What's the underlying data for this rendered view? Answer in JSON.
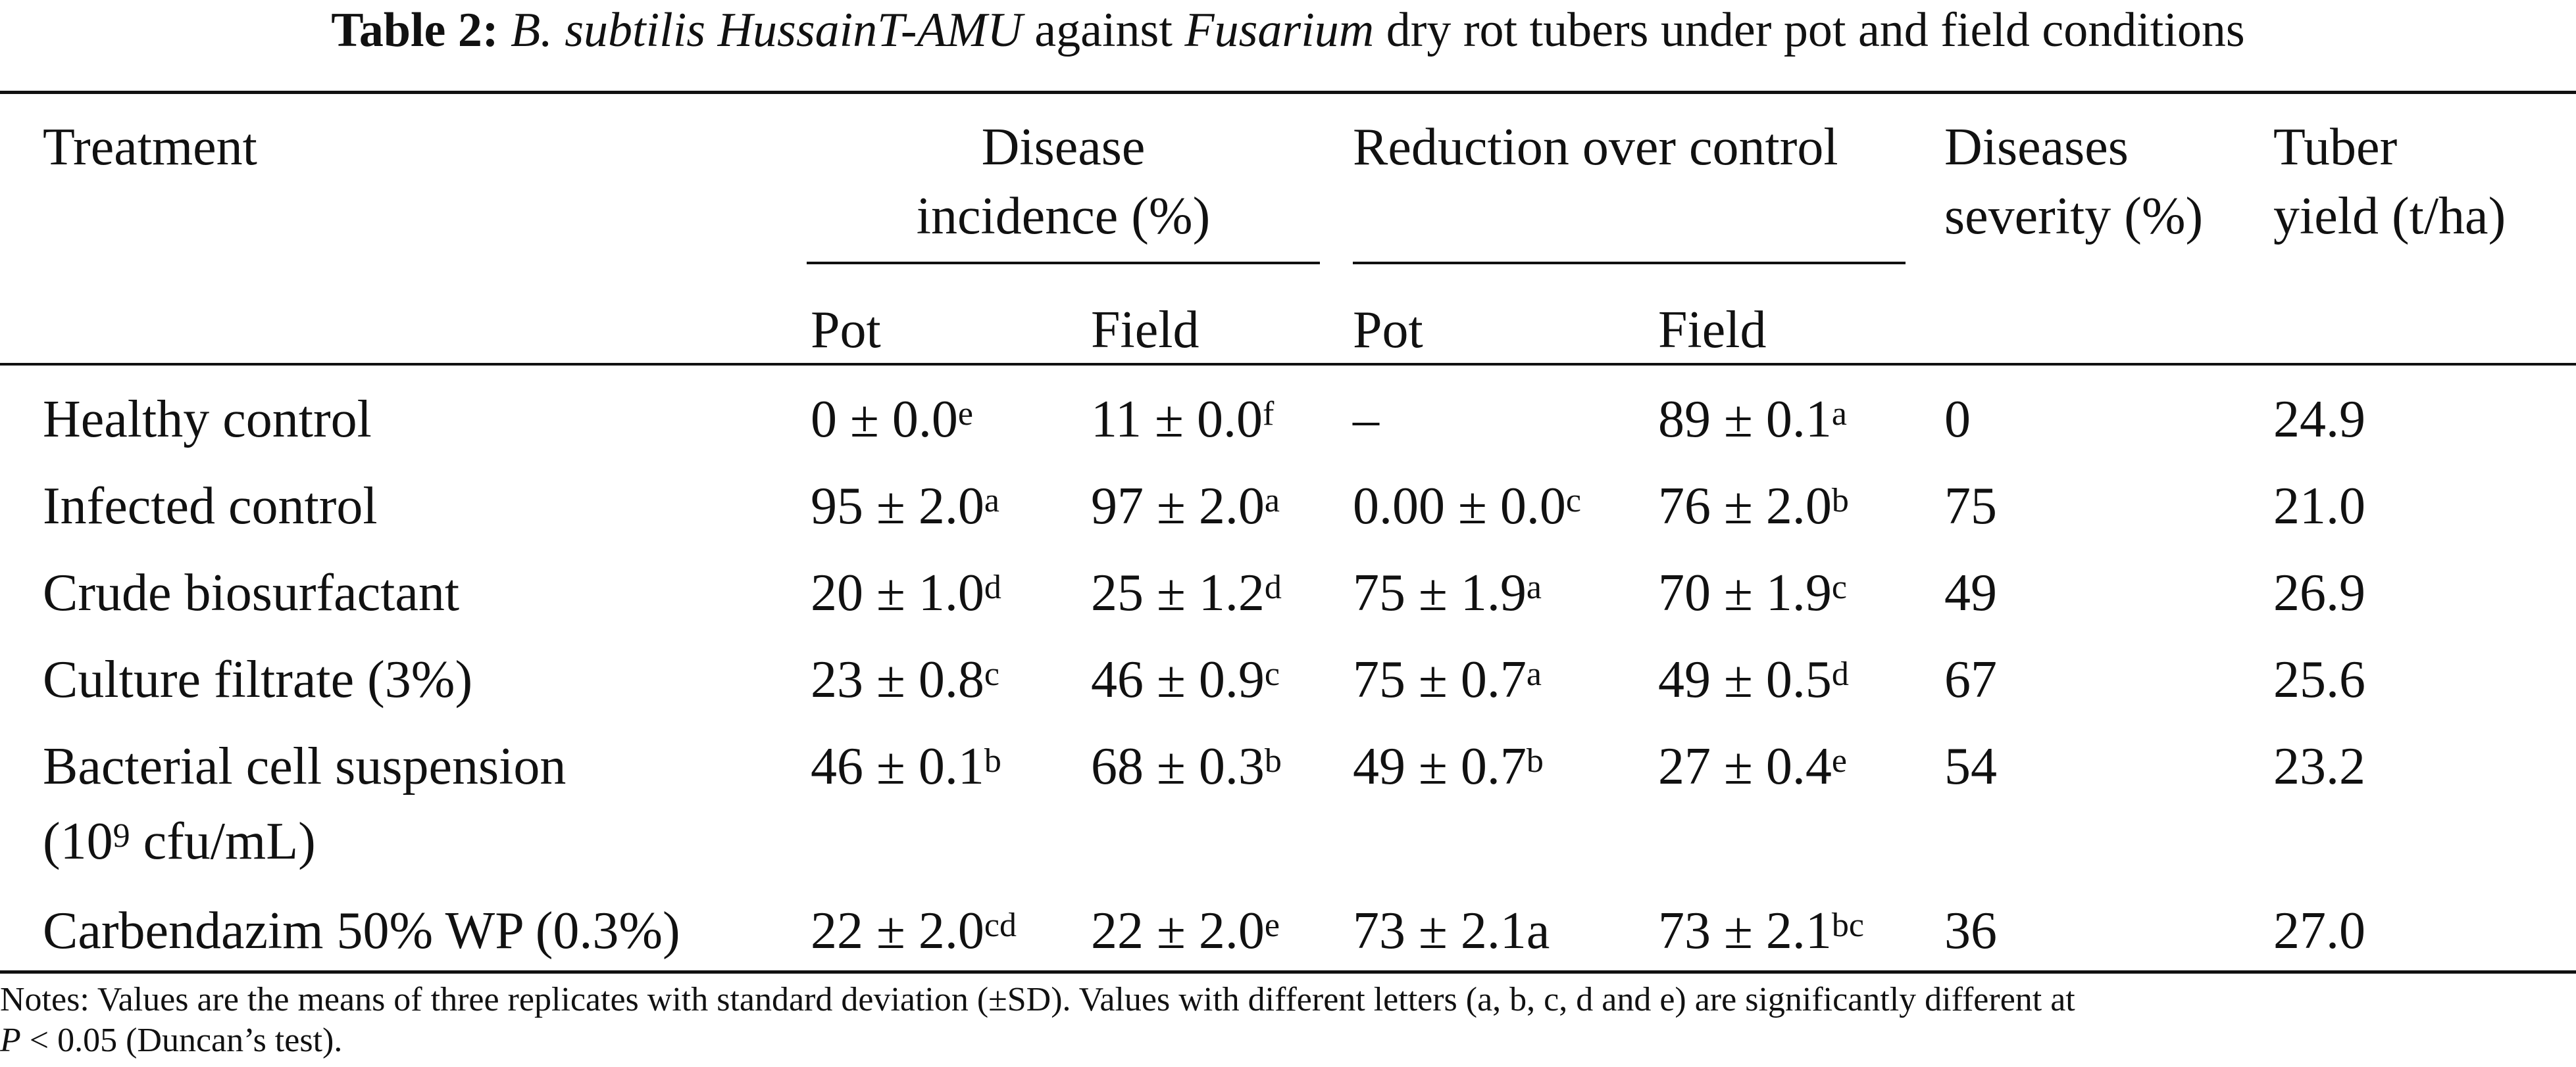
{
  "caption": {
    "label": "Table 2:",
    "species": "B. subtilis HussainT-AMU",
    "against": "against",
    "genus": "Fusarium",
    "rest": "dry rot tubers under pot and field conditions"
  },
  "header": {
    "treatment": "Treatment",
    "disease_incidence_l1": "Disease",
    "disease_incidence_l2": "incidence (%)",
    "reduction": "Reduction over control",
    "severity_l1": "Diseases",
    "severity_l2": "severity (%)",
    "yield_l1": "Tuber",
    "yield_l2": "yield (t/ha)",
    "pot": "Pot",
    "field": "Field"
  },
  "rows": [
    {
      "treatment": "Healthy control",
      "di_pot": "0 ± 0.0",
      "di_pot_sup": "e",
      "di_field": "11 ± 0.0",
      "di_field_sup": "f",
      "rc_pot": "–",
      "rc_pot_sup": "",
      "rc_field": "89 ± 0.1",
      "rc_field_sup": "a",
      "severity": "0",
      "yield": "24.9"
    },
    {
      "treatment": "Infected control",
      "di_pot": "95 ± 2.0",
      "di_pot_sup": "a",
      "di_field": "97 ± 2.0",
      "di_field_sup": "a",
      "rc_pot": "0.00 ± 0.0",
      "rc_pot_sup": "c",
      "rc_field": "76 ± 2.0",
      "rc_field_sup": "b",
      "severity": "75",
      "yield": "21.0"
    },
    {
      "treatment": "Crude biosurfactant",
      "di_pot": "20 ± 1.0",
      "di_pot_sup": "d",
      "di_field": "25 ± 1.2",
      "di_field_sup": "d",
      "rc_pot": "75 ± 1.9",
      "rc_pot_sup": "a",
      "rc_field": "70 ± 1.9",
      "rc_field_sup": "c",
      "severity": "49",
      "yield": "26.9"
    },
    {
      "treatment": "Culture filtrate (3%)",
      "di_pot": "23 ± 0.8",
      "di_pot_sup": "c",
      "di_field": "46 ± 0.9",
      "di_field_sup": "c",
      "rc_pot": "75 ± 0.7",
      "rc_pot_sup": "a",
      "rc_field": "49 ± 0.5",
      "rc_field_sup": "d",
      "severity": "67",
      "yield": "25.6"
    },
    {
      "treatment": "Bacterial cell suspension",
      "treatment_l2_pre": "(10",
      "treatment_l2_sup": "9",
      "treatment_l2_post": " cfu/mL)",
      "di_pot": "46 ± 0.1",
      "di_pot_sup": "b",
      "di_field": "68 ± 0.3",
      "di_field_sup": "b",
      "rc_pot": "49 ± 0.7",
      "rc_pot_sup": "b",
      "rc_field": "27 ± 0.4",
      "rc_field_sup": "e",
      "severity": "54",
      "yield": "23.2"
    },
    {
      "treatment": "Carbendazim 50% WP (0.3%)",
      "di_pot": "22 ± 2.0",
      "di_pot_sup": "cd",
      "di_field": "22 ± 2.0",
      "di_field_sup": "e",
      "rc_pot": "73 ± 2.1a",
      "rc_pot_sup": "",
      "rc_field": "73 ± 2.1",
      "rc_field_sup": "bc",
      "severity": "36",
      "yield": "27.0"
    }
  ],
  "notes": {
    "line1": "Notes: Values are the means of three replicates with standard deviation (±SD). Values with different letters (a, b, c, d and e) are significantly different at",
    "line2_p": "P",
    "line2_rest": " < 0.05 (Duncan’s test)."
  }
}
